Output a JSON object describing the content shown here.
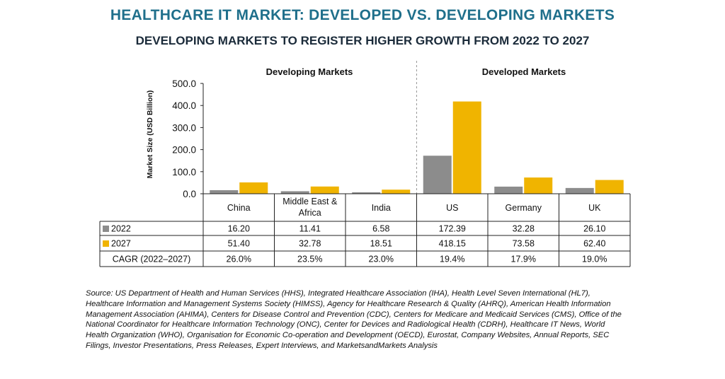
{
  "title": "HEALTHCARE IT MARKET: DEVELOPED VS. DEVELOPING MARKETS",
  "subtitle": "DEVELOPING MARKETS TO REGISTER HIGHER GROWTH FROM 2022 TO 2027",
  "groups": [
    {
      "label": "Developing Markets",
      "categories": [
        "China",
        "Middle East & Africa",
        "India"
      ]
    },
    {
      "label": "Developed Markets",
      "categories": [
        "US",
        "Germany",
        "UK"
      ]
    }
  ],
  "chart_data": {
    "type": "bar",
    "title": "HEALTHCARE IT MARKET: DEVELOPED VS. DEVELOPING MARKETS",
    "ylabel": "Market Size (USD Billion)",
    "xlabel": "",
    "ylim": [
      0,
      500
    ],
    "yticks": [
      "0.0",
      "100.0",
      "200.0",
      "300.0",
      "400.0",
      "500.0"
    ],
    "categories": [
      "China",
      "Middle East & Africa",
      "India",
      "US",
      "Germany",
      "UK"
    ],
    "series": [
      {
        "name": "2022",
        "color": "#8c8c8c",
        "values": [
          16.2,
          11.41,
          6.58,
          172.39,
          32.28,
          26.1
        ],
        "labels": [
          "16.20",
          "11.41",
          "6.58",
          "172.39",
          "32.28",
          "26.10"
        ]
      },
      {
        "name": "2027",
        "color": "#f0b400",
        "values": [
          51.4,
          32.78,
          18.51,
          418.15,
          73.58,
          62.4
        ],
        "labels": [
          "51.40",
          "32.78",
          "18.51",
          "418.15",
          "73.58",
          "62.40"
        ]
      }
    ],
    "cagr_label": "CAGR (2022–2027)",
    "cagr": [
      "26.0%",
      "23.5%",
      "23.0%",
      "19.4%",
      "17.9%",
      "19.0%"
    ],
    "grid": false,
    "legend": "table rows"
  },
  "source": "Source: US Department of Health and Human Services (HHS), Integrated Healthcare Association (IHA), Health Level Seven International (HL7), Healthcare Information and Management Systems Society (HIMSS), Agency for Healthcare Research & Quality (AHRQ), American Health Information Management Association (AHIMA), Centers for Disease Control and Prevention (CDC), Centers for Medicare and Medicaid Services (CMS), Office of the National Coordinator for Healthcare Information Technology (ONC), Center for Devices and Radiological Health (CDRH), Healthcare IT News, World Health Organization (WHO), Organisation for Economic Co-operation and Development (OECD), Eurostat, Company Websites, Annual Reports, SEC Filings, Investor Presentations, Press Releases, Expert Interviews, and MarketsandMarkets Analysis"
}
